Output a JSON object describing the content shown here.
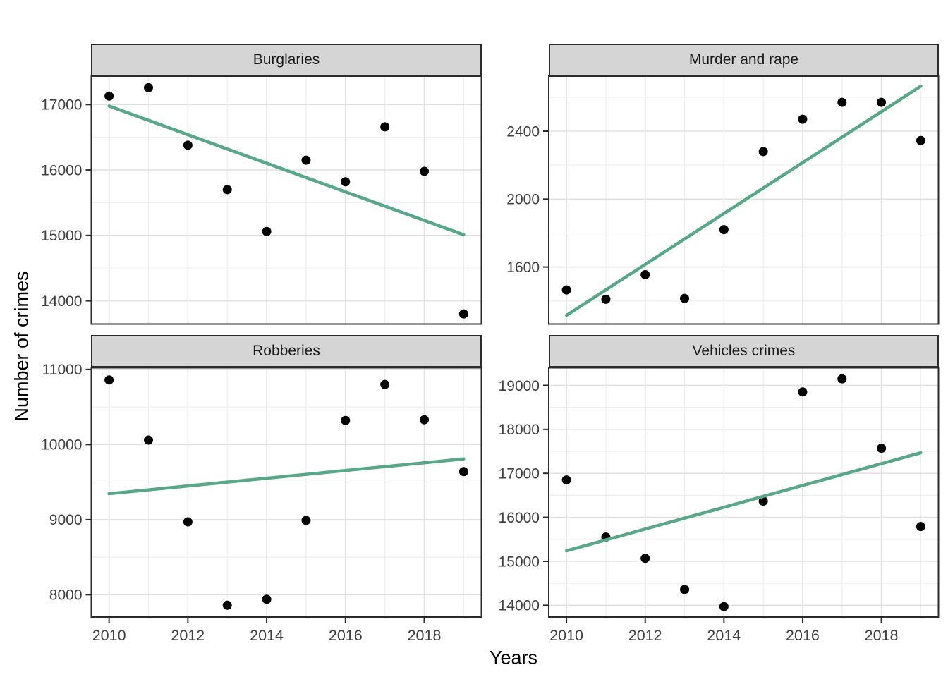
{
  "figure": {
    "y_axis_title": "Number of crimes",
    "x_axis_title": "Years",
    "colors": {
      "background": "#FFFFFF",
      "trend_line": "#58A786",
      "point": "#000000",
      "strip_fill": "#D5D5D5",
      "panel_border": "#2B2B2B",
      "grid_major": "#E2E2E2",
      "grid_minor": "#EFEFEF",
      "tick_label": "#404040",
      "tick_mark": "#2B2B2B"
    }
  },
  "chart_data": [
    {
      "type": "scatter",
      "title": "Burglaries",
      "x": [
        2010,
        2011,
        2012,
        2013,
        2014,
        2015,
        2016,
        2017,
        2018,
        2019
      ],
      "values": [
        17130,
        17260,
        16380,
        15700,
        15060,
        16150,
        15820,
        16660,
        15980,
        13800
      ],
      "trend": "linear",
      "xlabel": "Years",
      "ylabel": "Number of crimes",
      "xticks": [
        2010,
        2012,
        2014,
        2016,
        2018
      ],
      "yticks": [
        14000,
        15000,
        16000,
        17000
      ],
      "xlim": [
        2009.55,
        2019.45
      ],
      "ylim": [
        13645,
        17435
      ],
      "grid": true,
      "legend": "none"
    },
    {
      "type": "scatter",
      "title": "Murder and rape",
      "x": [
        2010,
        2011,
        2012,
        2013,
        2014,
        2015,
        2016,
        2017,
        2018,
        2019
      ],
      "values": [
        1465,
        1410,
        1555,
        1415,
        1820,
        2280,
        2470,
        2570,
        2570,
        2345
      ],
      "trend": "linear",
      "xlabel": "Years",
      "ylabel": "Number of crimes",
      "xticks": [
        2010,
        2012,
        2014,
        2016,
        2018
      ],
      "yticks": [
        1600,
        2000,
        2400
      ],
      "xlim": [
        2009.55,
        2019.45
      ],
      "ylim": [
        1264,
        2724
      ],
      "grid": true,
      "legend": "none"
    },
    {
      "type": "scatter",
      "title": "Robberies",
      "x": [
        2010,
        2011,
        2012,
        2013,
        2014,
        2015,
        2016,
        2017,
        2018,
        2019
      ],
      "values": [
        10860,
        10060,
        8970,
        7860,
        7940,
        8990,
        10320,
        10800,
        10330,
        9640
      ],
      "trend": "linear",
      "xlabel": "Years",
      "ylabel": "Number of crimes",
      "xticks": [
        2010,
        2012,
        2014,
        2016,
        2018
      ],
      "yticks": [
        8000,
        9000,
        10000,
        11000
      ],
      "xlim": [
        2009.55,
        2019.45
      ],
      "ylim": [
        7703,
        11022
      ],
      "grid": true,
      "legend": "none"
    },
    {
      "type": "scatter",
      "title": "Vehicles crimes",
      "x": [
        2010,
        2011,
        2012,
        2013,
        2014,
        2015,
        2016,
        2017,
        2018,
        2019
      ],
      "values": [
        16850,
        15550,
        15070,
        14360,
        13970,
        16370,
        18850,
        19150,
        17570,
        15790
      ],
      "trend": "linear",
      "xlabel": "Years",
      "ylabel": "Number of crimes",
      "xticks": [
        2010,
        2012,
        2014,
        2016,
        2018
      ],
      "yticks": [
        14000,
        15000,
        16000,
        17000,
        18000,
        19000
      ],
      "xlim": [
        2009.55,
        2019.45
      ],
      "ylim": [
        13733,
        19400
      ],
      "grid": true,
      "legend": "none"
    }
  ]
}
